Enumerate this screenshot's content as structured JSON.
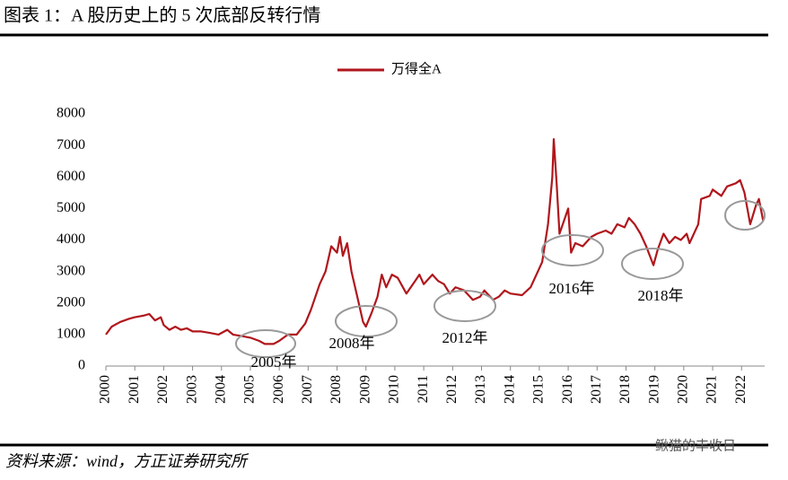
{
  "chart_data": {
    "type": "line",
    "title": "图表 1：A 股历史上的 5 次底部反转行情",
    "source": "资料来源：wind，方正证券研究所",
    "watermark": "鳅猫的丰收日",
    "x": [
      2000.0,
      2000.2,
      2000.5,
      2000.8,
      2001.0,
      2001.3,
      2001.5,
      2001.7,
      2001.9,
      2002.0,
      2002.2,
      2002.4,
      2002.6,
      2002.8,
      2003.0,
      2003.3,
      2003.6,
      2003.9,
      2004.2,
      2004.4,
      2004.7,
      2005.0,
      2005.3,
      2005.5,
      2005.8,
      2006.0,
      2006.3,
      2006.6,
      2006.9,
      2007.1,
      2007.4,
      2007.6,
      2007.8,
      2008.0,
      2008.1,
      2008.2,
      2008.35,
      2008.5,
      2008.7,
      2008.9,
      2009.0,
      2009.2,
      2009.4,
      2009.55,
      2009.7,
      2009.9,
      2010.1,
      2010.4,
      2010.7,
      2010.85,
      2011.0,
      2011.3,
      2011.5,
      2011.7,
      2011.9,
      2012.1,
      2012.4,
      2012.7,
      2012.95,
      2013.1,
      2013.4,
      2013.6,
      2013.8,
      2014.0,
      2014.4,
      2014.7,
      2014.9,
      2015.1,
      2015.3,
      2015.45,
      2015.5,
      2015.6,
      2015.7,
      2015.85,
      2016.0,
      2016.1,
      2016.25,
      2016.5,
      2016.8,
      2017.0,
      2017.3,
      2017.5,
      2017.7,
      2017.95,
      2018.1,
      2018.3,
      2018.5,
      2018.7,
      2018.95,
      2019.1,
      2019.3,
      2019.5,
      2019.7,
      2019.9,
      2020.1,
      2020.2,
      2020.5,
      2020.6,
      2020.9,
      2021.0,
      2021.3,
      2021.5,
      2021.8,
      2021.95,
      2022.1,
      2022.3,
      2022.5,
      2022.6,
      2022.75
    ],
    "series": [
      {
        "name": "万得全A",
        "color": "#b0161c",
        "values": [
          1000,
          1250,
          1400,
          1500,
          1550,
          1600,
          1650,
          1450,
          1550,
          1300,
          1150,
          1250,
          1150,
          1200,
          1100,
          1100,
          1050,
          1000,
          1150,
          1000,
          950,
          900,
          800,
          700,
          700,
          800,
          1000,
          1000,
          1350,
          1800,
          2600,
          3000,
          3800,
          3600,
          4100,
          3500,
          3900,
          3000,
          2200,
          1400,
          1250,
          1700,
          2200,
          2900,
          2500,
          2900,
          2800,
          2300,
          2700,
          2900,
          2600,
          2900,
          2700,
          2600,
          2300,
          2500,
          2400,
          2100,
          2200,
          2400,
          2100,
          2200,
          2400,
          2300,
          2250,
          2500,
          2900,
          3300,
          4500,
          6000,
          7200,
          5800,
          4200,
          4600,
          5000,
          3600,
          3900,
          3800,
          4100,
          4200,
          4300,
          4200,
          4500,
          4400,
          4700,
          4500,
          4200,
          3800,
          3200,
          3700,
          4200,
          3900,
          4100,
          4000,
          4200,
          3900,
          4500,
          5300,
          5400,
          5600,
          5400,
          5700,
          5800,
          5900,
          5500,
          4500,
          5100,
          5300,
          4600
        ]
      }
    ],
    "xlim": [
      2000,
      2022.8
    ],
    "xticks": [
      2000,
      2001,
      2002,
      2003,
      2004,
      2005,
      2006,
      2007,
      2008,
      2009,
      2010,
      2011,
      2012,
      2013,
      2014,
      2015,
      2016,
      2017,
      2018,
      2019,
      2020,
      2021,
      2022
    ],
    "ylim": [
      0,
      8000
    ],
    "yticks": [
      0,
      1000,
      2000,
      3000,
      4000,
      5000,
      6000,
      7000,
      8000
    ],
    "legend": "top",
    "annotations": [
      "2005年",
      "2008年",
      "2012年",
      "2016年",
      "2018年"
    ]
  }
}
